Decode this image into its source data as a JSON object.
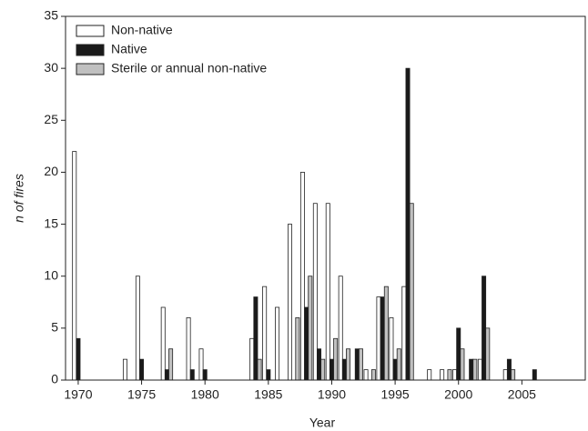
{
  "chart_data": {
    "type": "bar",
    "x": [
      1970,
      1971,
      1972,
      1973,
      1974,
      1975,
      1976,
      1977,
      1978,
      1979,
      1980,
      1981,
      1982,
      1983,
      1984,
      1985,
      1986,
      1987,
      1988,
      1989,
      1990,
      1991,
      1992,
      1993,
      1994,
      1995,
      1996,
      1997,
      1998,
      1999,
      2000,
      2001,
      2002,
      2003,
      2004,
      2005,
      2006
    ],
    "series": [
      {
        "name": "Non-native",
        "color": "#ffffff",
        "values": [
          22,
          0,
          0,
          0,
          2,
          10,
          0,
          7,
          0,
          6,
          3,
          0,
          0,
          0,
          4,
          9,
          7,
          15,
          20,
          17,
          17,
          10,
          0,
          1,
          8,
          6,
          9,
          0,
          1,
          1,
          1,
          0,
          2,
          0,
          1,
          0,
          0
        ]
      },
      {
        "name": "Native",
        "color": "#1a1a1a",
        "values": [
          4,
          0,
          0,
          0,
          0,
          2,
          0,
          1,
          0,
          1,
          1,
          0,
          0,
          0,
          8,
          1,
          0,
          0,
          7,
          3,
          2,
          2,
          3,
          0,
          8,
          2,
          30,
          0,
          0,
          0,
          5,
          2,
          10,
          0,
          2,
          0,
          1
        ]
      },
      {
        "name": "Sterile or annual non-native",
        "color": "#c0c0c0",
        "values": [
          0,
          0,
          0,
          0,
          0,
          0,
          0,
          3,
          0,
          0,
          0,
          0,
          0,
          0,
          2,
          0,
          0,
          6,
          10,
          2,
          4,
          3,
          3,
          1,
          9,
          3,
          17,
          0,
          0,
          1,
          3,
          2,
          5,
          0,
          1,
          0,
          0
        ]
      }
    ],
    "xlabel": "Year",
    "ylabel": "n of fires",
    "xlim": [
      1969,
      2010
    ],
    "xticks": [
      1970,
      1975,
      1980,
      1985,
      1990,
      1995,
      2000,
      2005
    ],
    "ylim": [
      0,
      35
    ],
    "yticks": [
      0,
      5,
      10,
      15,
      20,
      25,
      30,
      35
    ],
    "legend": "upper left"
  }
}
